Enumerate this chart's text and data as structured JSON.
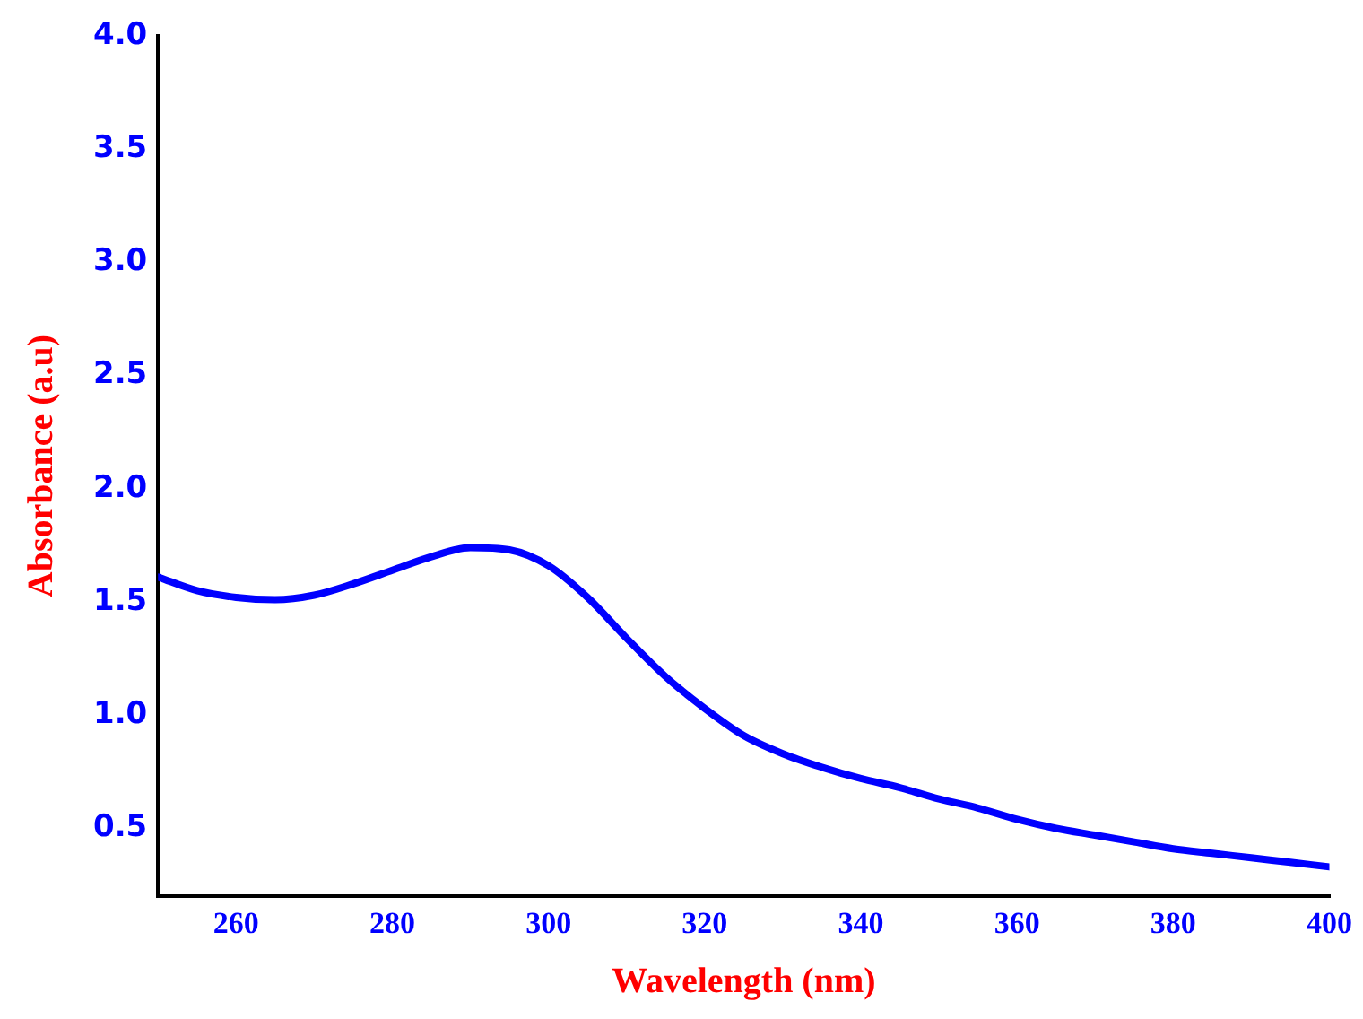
{
  "chart_data": {
    "type": "line",
    "xlabel": "Wavelength (nm)",
    "ylabel": "Absorbance (a.u)",
    "x": [
      250,
      255,
      260,
      265,
      270,
      275,
      280,
      285,
      290,
      295,
      300,
      305,
      310,
      315,
      320,
      325,
      330,
      335,
      340,
      345,
      350,
      355,
      360,
      365,
      370,
      375,
      380,
      385,
      390,
      395,
      400
    ],
    "series": [
      {
        "color": "#0000ff",
        "values": [
          1.61,
          1.55,
          1.52,
          1.51,
          1.53,
          1.58,
          1.64,
          1.7,
          1.74,
          1.73,
          1.66,
          1.52,
          1.34,
          1.17,
          1.03,
          0.91,
          0.83,
          0.77,
          0.72,
          0.68,
          0.63,
          0.59,
          0.54,
          0.5,
          0.47,
          0.44,
          0.41,
          0.39,
          0.37,
          0.35,
          0.33
        ]
      }
    ],
    "xlim": [
      250,
      400
    ],
    "xticks": [
      260,
      280,
      300,
      320,
      340,
      360,
      380,
      400
    ],
    "ylim": [
      0.2,
      4.0
    ],
    "yticks": [
      0.5,
      {
        "value": 1,
        "label": "1.0"
      },
      1.5,
      {
        "value": 2,
        "label": "2.0"
      },
      2.5,
      {
        "value": 3,
        "label": "3.0"
      },
      3.5,
      {
        "value": 4,
        "label": "4.0"
      }
    ],
    "grid": false,
    "legend": false,
    "marker": "none",
    "line_style": "solid"
  }
}
